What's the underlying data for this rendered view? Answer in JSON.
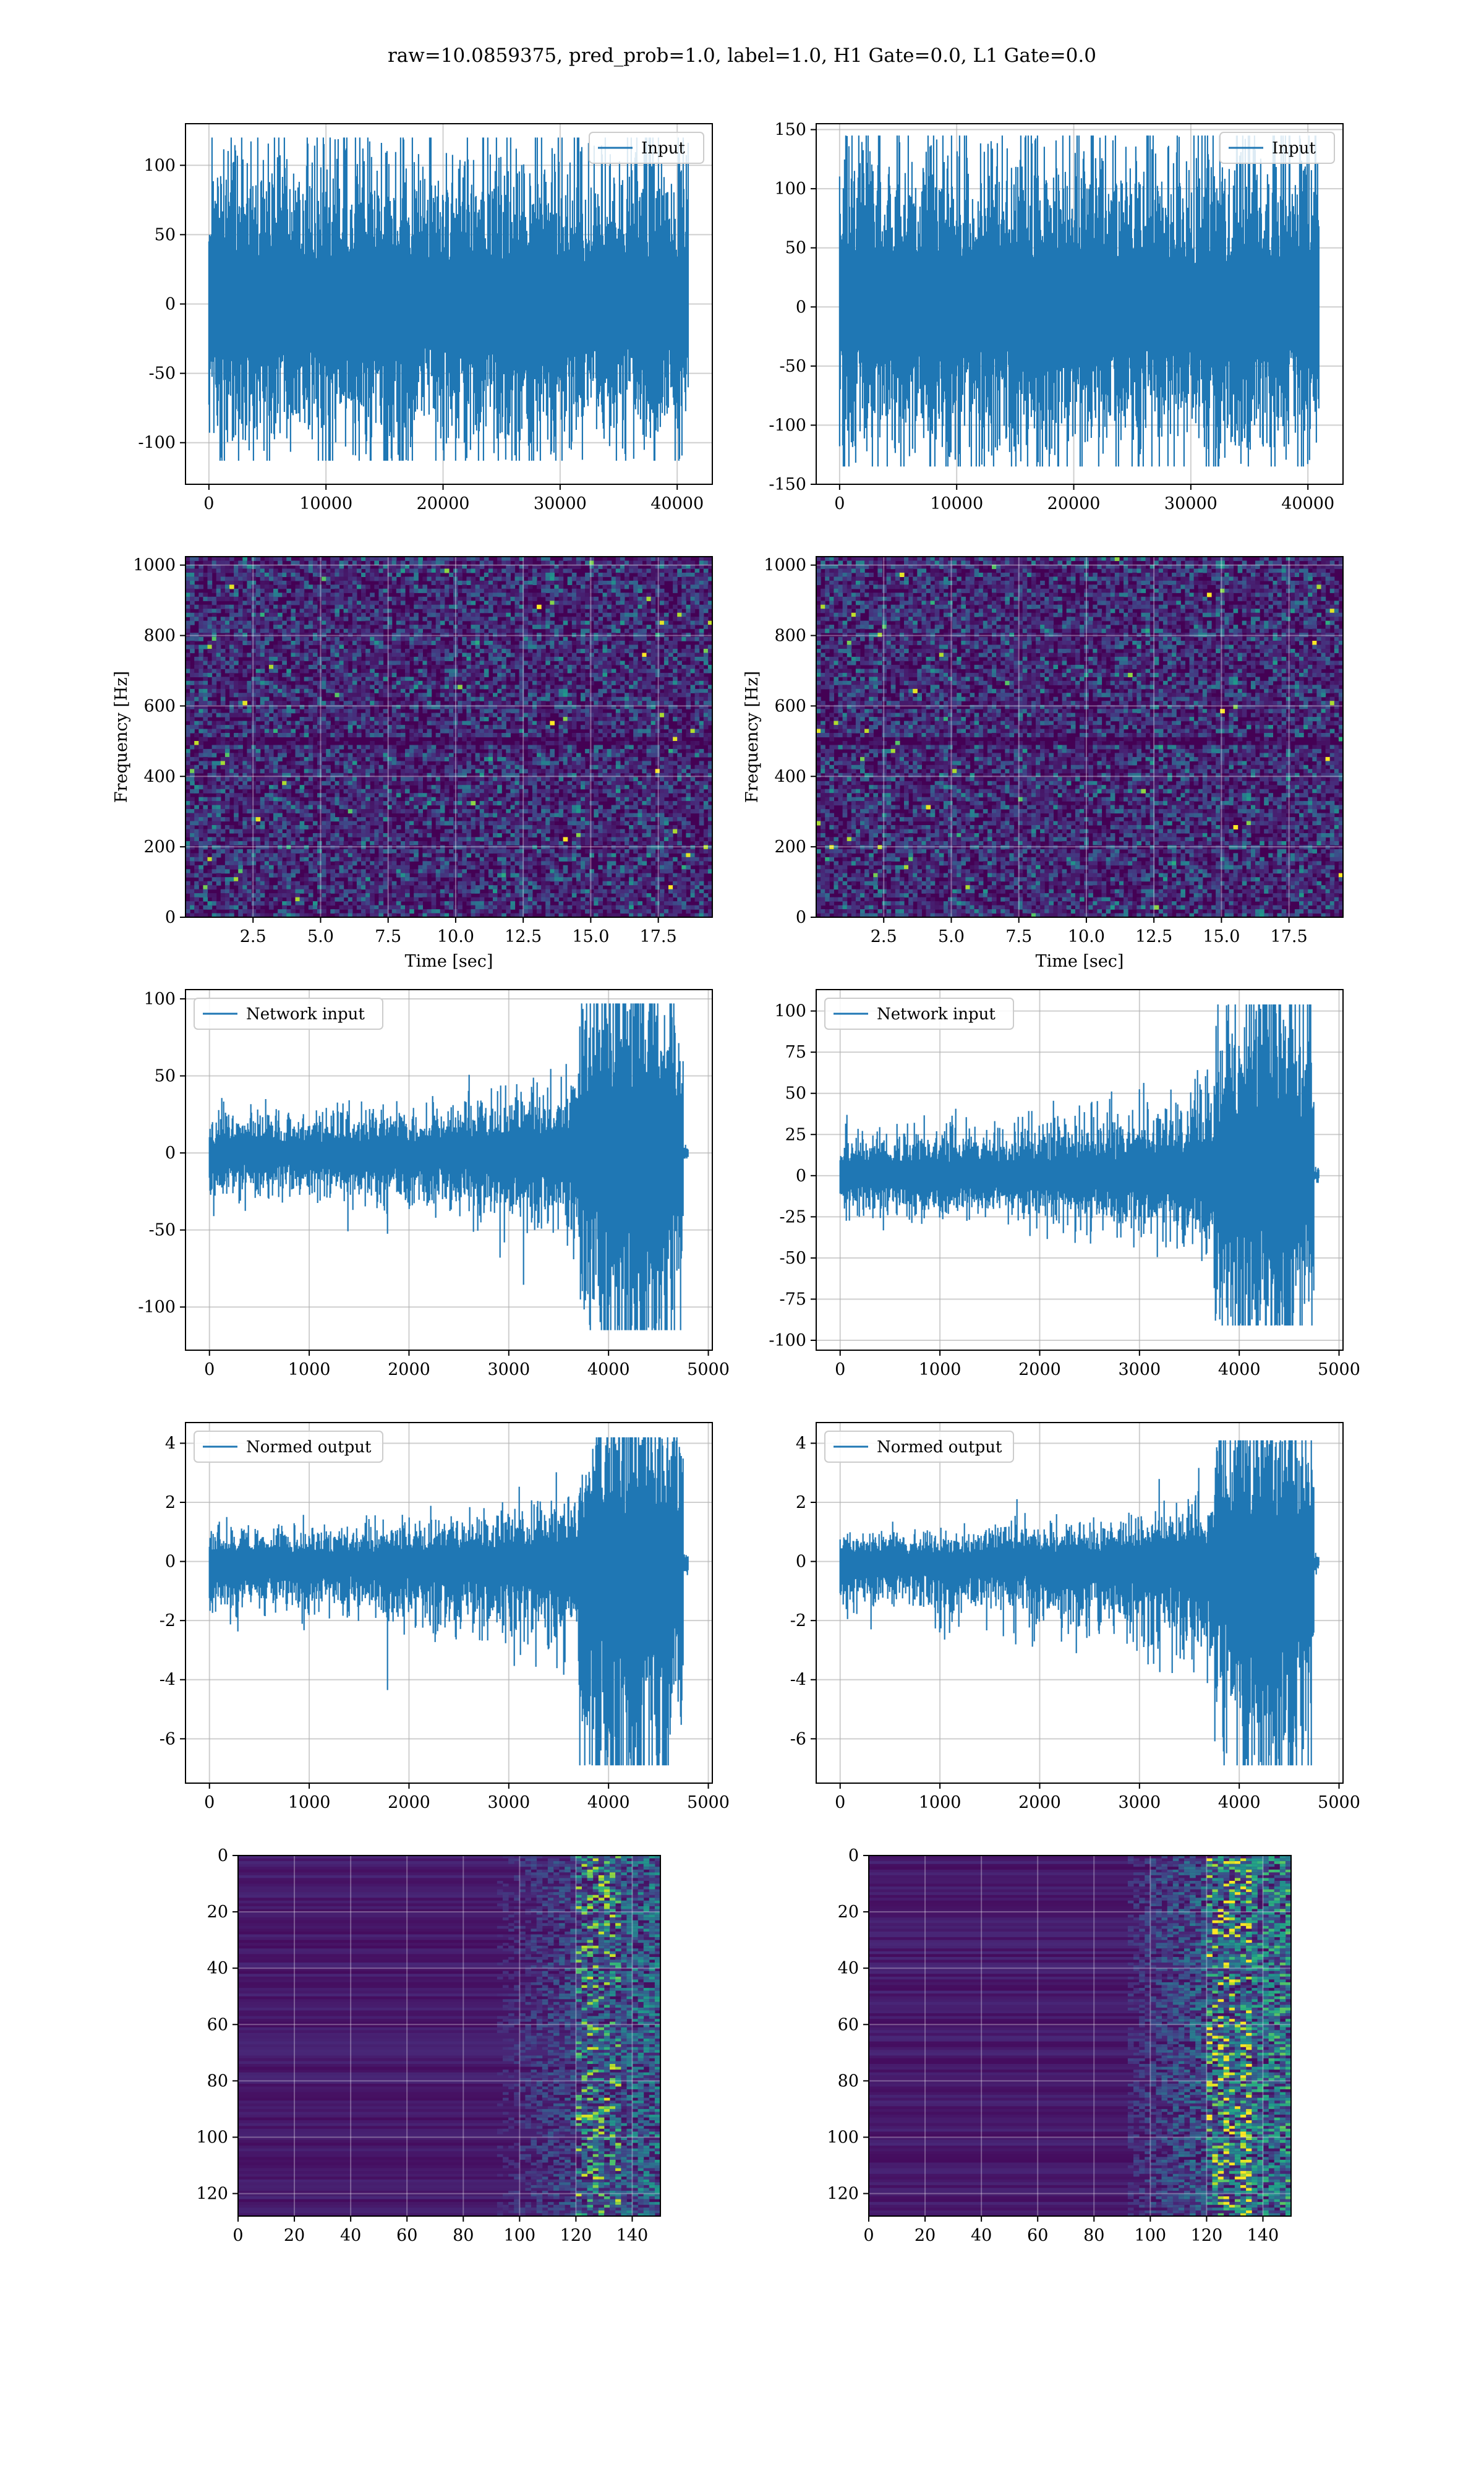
{
  "suptitle": "raw=10.0859375, pred_prob=1.0, label=1.0, H1 Gate=0.0, L1 Gate=0.0",
  "colors": {
    "line": "#1f77b4",
    "grid": "#b0b0b0",
    "viridis_low": "#440154",
    "viridis_high": "#fde725"
  },
  "chart_data": [
    {
      "id": "input-h1",
      "type": "line",
      "title": "",
      "xlabel": "",
      "ylabel": "",
      "legend": "Input",
      "legend_loc": "upper right",
      "xlim": [
        -2000,
        43000
      ],
      "ylim": [
        -130,
        130
      ],
      "xticks": [
        0,
        10000,
        20000,
        30000,
        40000
      ],
      "yticks": [
        -100,
        -50,
        0,
        50,
        100
      ],
      "series": [
        {
          "name": "Input",
          "n_samples": 40960,
          "amplitude_max": 120,
          "amplitude_min": -113
        }
      ]
    },
    {
      "id": "input-l1",
      "type": "line",
      "title": "",
      "xlabel": "",
      "ylabel": "",
      "legend": "Input",
      "legend_loc": "upper right",
      "xlim": [
        -2000,
        43000
      ],
      "ylim": [
        -150,
        155
      ],
      "xticks": [
        0,
        10000,
        20000,
        30000,
        40000
      ],
      "yticks": [
        -150,
        -100,
        -50,
        0,
        50,
        100,
        150
      ],
      "series": [
        {
          "name": "Input",
          "n_samples": 40960,
          "amplitude_max": 145,
          "amplitude_min": -135
        }
      ]
    },
    {
      "id": "spectrogram-h1",
      "type": "heatmap",
      "xlabel": "Time [sec]",
      "ylabel": "Frequency [Hz]",
      "xlim": [
        0,
        19.5
      ],
      "ylim": [
        0,
        1024
      ],
      "xticks": [
        2.5,
        5.0,
        7.5,
        10.0,
        12.5,
        15.0,
        17.5
      ],
      "xtick_labels": [
        "2.5",
        "5.0",
        "7.5",
        "10.0",
        "12.5",
        "15.0",
        "17.5"
      ],
      "yticks": [
        0,
        200,
        400,
        600,
        800,
        1000
      ],
      "colormap": "viridis"
    },
    {
      "id": "spectrogram-l1",
      "type": "heatmap",
      "xlabel": "Time [sec]",
      "ylabel": "Frequency [Hz]",
      "xlim": [
        0,
        19.5
      ],
      "ylim": [
        0,
        1024
      ],
      "xticks": [
        2.5,
        5.0,
        7.5,
        10.0,
        12.5,
        15.0,
        17.5
      ],
      "xtick_labels": [
        "2.5",
        "5.0",
        "7.5",
        "10.0",
        "12.5",
        "15.0",
        "17.5"
      ],
      "yticks": [
        0,
        200,
        400,
        600,
        800,
        1000
      ],
      "colormap": "viridis"
    },
    {
      "id": "network-input-h1",
      "type": "line",
      "legend": "Network input",
      "legend_loc": "upper left",
      "xlim": [
        -240,
        5040
      ],
      "ylim": [
        -128,
        106
      ],
      "xticks": [
        0,
        1000,
        2000,
        3000,
        4000,
        5000
      ],
      "yticks": [
        -100,
        -50,
        0,
        50,
        100
      ],
      "series": [
        {
          "name": "Network input",
          "n_samples": 4800,
          "burst_start": 3700,
          "burst_end": 4750,
          "amplitude_max": 97,
          "amplitude_min": -115
        }
      ]
    },
    {
      "id": "network-input-l1",
      "type": "line",
      "legend": "Network input",
      "legend_loc": "upper left",
      "xlim": [
        -240,
        5040
      ],
      "ylim": [
        -106,
        113
      ],
      "xticks": [
        0,
        1000,
        2000,
        3000,
        4000,
        5000
      ],
      "yticks": [
        -100,
        -75,
        -50,
        -25,
        0,
        25,
        50,
        75,
        100
      ],
      "series": [
        {
          "name": "Network input",
          "n_samples": 4800,
          "burst_start": 3750,
          "burst_end": 4750,
          "amplitude_max": 104,
          "amplitude_min": -91
        }
      ]
    },
    {
      "id": "normed-output-h1",
      "type": "line",
      "legend": "Normed output",
      "legend_loc": "upper left",
      "xlim": [
        -240,
        5040
      ],
      "ylim": [
        -7.5,
        4.7
      ],
      "xticks": [
        0,
        1000,
        2000,
        3000,
        4000,
        5000
      ],
      "yticks": [
        -6,
        -4,
        -2,
        0,
        2,
        4
      ],
      "series": [
        {
          "name": "Normed output",
          "n_samples": 4800,
          "burst_start": 3700,
          "burst_end": 4750,
          "amplitude_max": 4.2,
          "amplitude_min": -6.9
        }
      ]
    },
    {
      "id": "normed-output-l1",
      "type": "line",
      "legend": "Normed output",
      "legend_loc": "upper left",
      "xlim": [
        -240,
        5040
      ],
      "ylim": [
        -7.5,
        4.7
      ],
      "xticks": [
        0,
        1000,
        2000,
        3000,
        4000,
        5000
      ],
      "yticks": [
        -6,
        -4,
        -2,
        0,
        2,
        4
      ],
      "series": [
        {
          "name": "Normed output",
          "n_samples": 4800,
          "burst_start": 3750,
          "burst_end": 4750,
          "amplitude_max": 4.1,
          "amplitude_min": -6.9
        }
      ]
    },
    {
      "id": "feature-map-h1",
      "type": "heatmap",
      "xlim": [
        0,
        150
      ],
      "ylim": [
        128,
        0
      ],
      "xticks": [
        0,
        20,
        40,
        60,
        80,
        100,
        120,
        140
      ],
      "yticks": [
        0,
        20,
        40,
        60,
        80,
        100,
        120
      ],
      "colormap": "viridis"
    },
    {
      "id": "feature-map-l1",
      "type": "heatmap",
      "xlim": [
        0,
        150
      ],
      "ylim": [
        128,
        0
      ],
      "xticks": [
        0,
        20,
        40,
        60,
        80,
        100,
        120,
        140
      ],
      "yticks": [
        0,
        20,
        40,
        60,
        80,
        100,
        120
      ],
      "colormap": "viridis"
    }
  ]
}
